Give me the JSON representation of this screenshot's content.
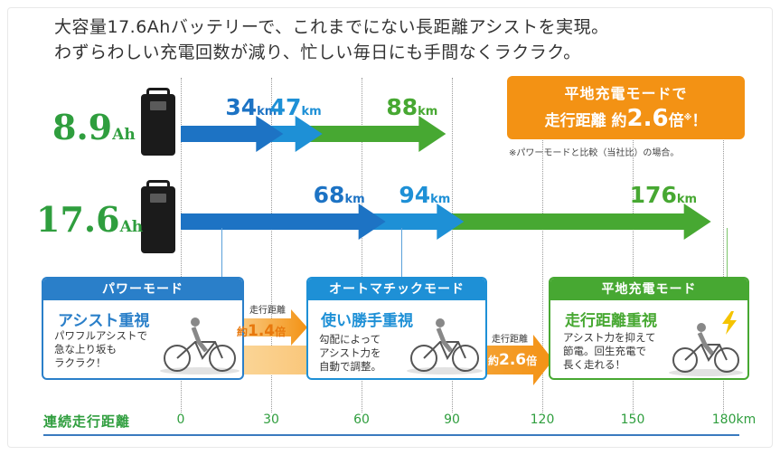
{
  "headline": {
    "line1": "大容量17.6Ahバッテリーで、これまでにない長距離アシストを実現。",
    "line2": "わずらわしい充電回数が減り、忙しい毎日にも手間なくラクラク。"
  },
  "batteries": [
    {
      "capacity": "8.9",
      "unit": "Ah"
    },
    {
      "capacity": "17.6",
      "unit": "Ah"
    }
  ],
  "callout": {
    "line1": "平地充電モードで",
    "line2_prefix": "走行距離 約",
    "line2_value": "2.6",
    "line2_suffix": "倍",
    "mark": "※",
    "exclaim": "！",
    "note": "※パワーモードと比較（当社比）の場合。"
  },
  "chart_data": {
    "type": "bar",
    "xlabel": "連続走行距離",
    "x_unit": "km",
    "xlim": [
      0,
      180
    ],
    "ticks": [
      0,
      30,
      60,
      90,
      120,
      150,
      180
    ],
    "tick_labels": [
      "0",
      "30",
      "60",
      "90",
      "120",
      "150",
      "180km"
    ],
    "series_order": [
      "パワーモード",
      "オートマチックモード",
      "平地充電モード"
    ],
    "rows": [
      {
        "battery": "8.9Ah",
        "values": [
          34,
          47,
          88
        ],
        "labels": [
          "34",
          "47",
          "88"
        ],
        "unit_label": "km"
      },
      {
        "battery": "17.6Ah",
        "values": [
          68,
          94,
          176
        ],
        "labels": [
          "68",
          "94",
          "176"
        ],
        "unit_label": "km"
      }
    ],
    "colors": {
      "power": "#1d73c4",
      "auto": "#1e90d6",
      "flat": "#47a832"
    }
  },
  "modes": [
    {
      "header": "パワーモード",
      "title": "アシスト重視",
      "desc": [
        "パワフルアシストで",
        "急な上り坂も",
        "ラクラク！"
      ],
      "color": "#2a7fc9"
    },
    {
      "header": "オートマチックモード",
      "title": "使い勝手重視",
      "desc": [
        "勾配によって",
        "アシスト力を",
        "自動で調整。"
      ],
      "color": "#1e90d6"
    },
    {
      "header": "平地充電モード",
      "title": "走行距離重視",
      "desc": [
        "アシスト力を抑えて",
        "節電。回生充電で",
        "長く走れる！"
      ],
      "color": "#47a832"
    }
  ],
  "ratios": [
    {
      "label": "走行距離",
      "prefix": "約",
      "value": "1.4",
      "suffix": "倍"
    },
    {
      "label": "走行距離",
      "prefix": "約",
      "value": "2.6",
      "suffix": "倍"
    }
  ]
}
